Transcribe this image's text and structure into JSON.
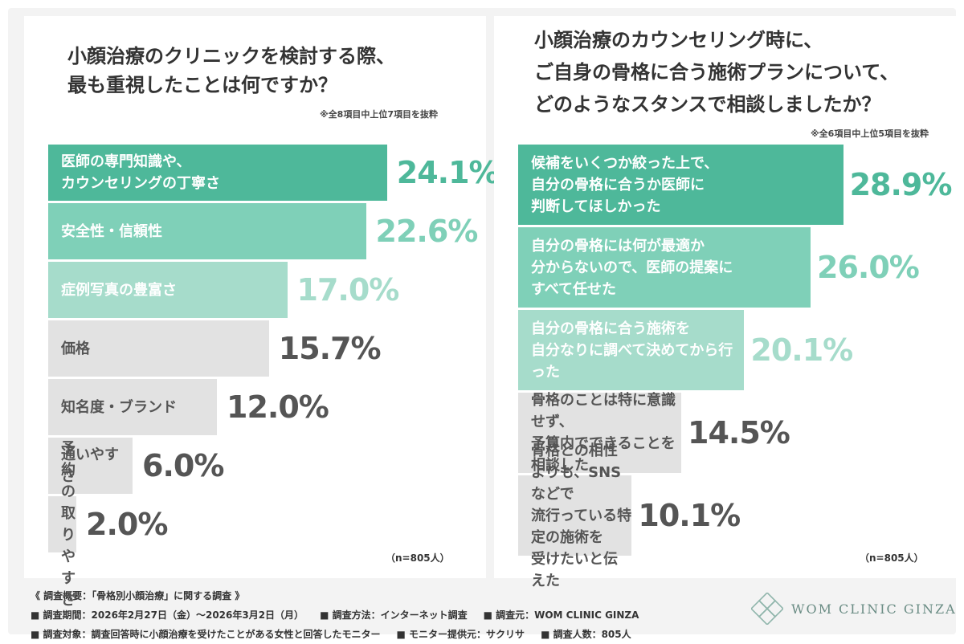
{
  "colors": {
    "bar_dark": "#4eb89a",
    "bar_mid": "#7fd0b8",
    "bar_light": "#a6dccb",
    "bar_gray": "#e2e2e2",
    "text_dark": "#555555",
    "text_white": "#ffffff"
  },
  "chart_data": [
    {
      "type": "bar",
      "title": "小顔治療のクリニックを検討する際、\n最も重視したことは何ですか？",
      "note": "※全8項目中上位7項目を抜粋",
      "categories": [
        "医師の専門知識や、\nカウンセリングの丁寧さ",
        "安全性・信頼性",
        "症例写真の豊富さ",
        "価格",
        "知名度・ブランド",
        "通いやすさ",
        "予約の取りやすさ"
      ],
      "values": [
        24.1,
        22.6,
        17.0,
        15.7,
        12.0,
        6.0,
        2.0
      ],
      "value_labels": [
        "24.1%",
        "22.6%",
        "17.0%",
        "15.7%",
        "12.0%",
        "6.0%",
        "2.0%"
      ],
      "n_label": "（n=805人）"
    },
    {
      "type": "bar",
      "title": "小顔治療のカウンセリング時に、\nご自身の骨格に合う施術プランについて、\nどのようなスタンスで相談しましたか？",
      "note": "※全6項目中上位5項目を抜粋",
      "categories": [
        "候補をいくつか絞った上で、\n自分の骨格に合うか医師に\n判断してほしかった",
        "自分の骨格には何が最適か\n分からないので、医師の提案に\nすべて任せた",
        "自分の骨格に合う施術を\n自分なりに調べて決めてから行った",
        "骨格のことは特に意識せず、\n予算内でできることを相談した",
        "骨格との相性よりも、SNSなどで\n流行っている特定の施術を\n受けたいと伝えた"
      ],
      "values": [
        28.9,
        26.0,
        20.1,
        14.5,
        10.1
      ],
      "value_labels": [
        "28.9%",
        "26.0%",
        "20.1%",
        "14.5%",
        "10.1%"
      ],
      "n_label": "（n=805人）"
    }
  ],
  "footer": {
    "summary": "《 調査概要：「骨格別小顔治療」に関する調査 》",
    "period": "■ 調査期間：2026年2月27日（金）〜2026年3月2日（月）",
    "method": "■ 調査方法：インターネット調査",
    "source": "■ 調査元：WOM CLINIC GINZA",
    "target": "■ 調査対象：調査回答時に小顔治療を受けたことがある女性と回答したモニター",
    "provider": "■ モニター提供元：サクリサ",
    "count": "■ 調査人数：805人"
  },
  "logo": {
    "text": "WOM CLINIC GINZA",
    "icon": "diamond-lattice-icon"
  }
}
